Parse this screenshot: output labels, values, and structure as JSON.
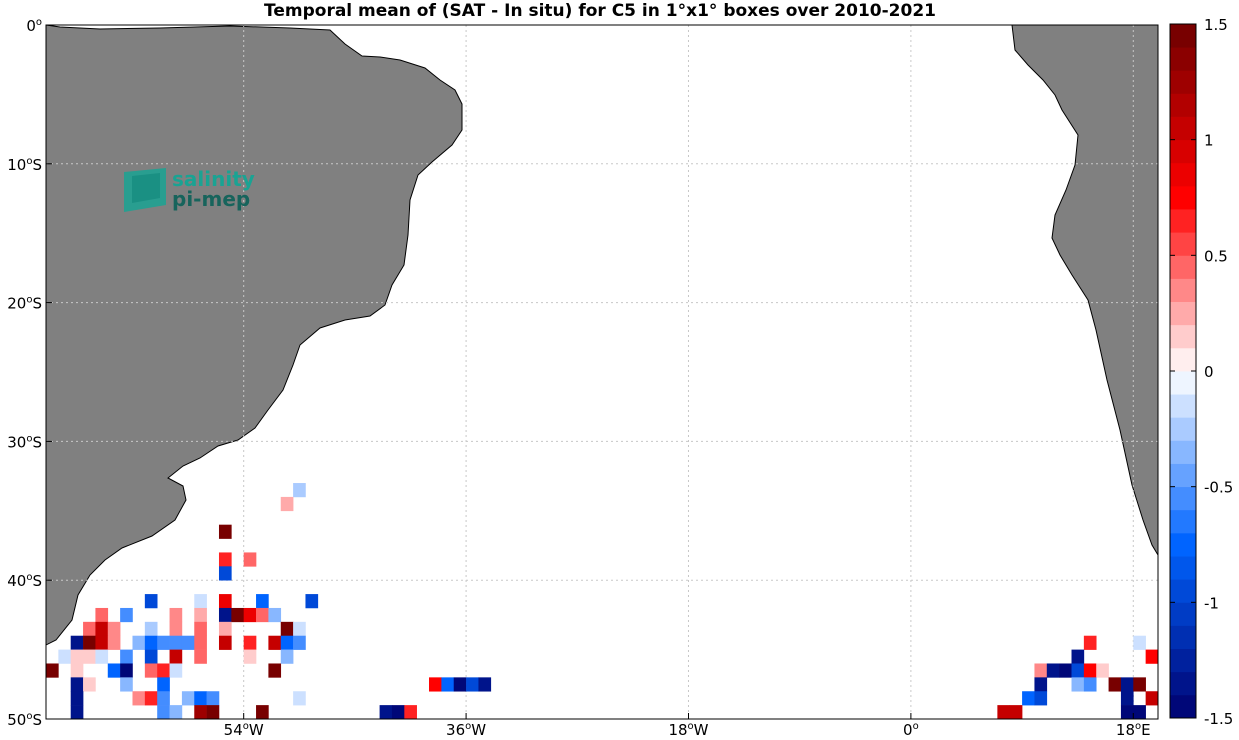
{
  "chart_data": {
    "type": "heatmap",
    "title": "Temporal mean of (SAT - In situ) for C5 in 1°x1° boxes over 2010-2021",
    "xlim": [
      -70,
      20
    ],
    "ylim": [
      -50,
      0
    ],
    "x_ticks": [
      {
        "value": -54,
        "label": "54",
        "sup": "o",
        "suffix": "W"
      },
      {
        "value": -36,
        "label": "36",
        "sup": "o",
        "suffix": "W"
      },
      {
        "value": -18,
        "label": "18",
        "sup": "o",
        "suffix": "W"
      },
      {
        "value": 0,
        "label": "0",
        "sup": "o",
        "suffix": ""
      },
      {
        "value": 18,
        "label": "18",
        "sup": "o",
        "suffix": "E"
      }
    ],
    "y_ticks": [
      {
        "value": 0,
        "label": "0",
        "sup": "o",
        "suffix": ""
      },
      {
        "value": -10,
        "label": "10",
        "sup": "o",
        "suffix": "S"
      },
      {
        "value": -20,
        "label": "20",
        "sup": "o",
        "suffix": "S"
      },
      {
        "value": -30,
        "label": "30",
        "sup": "o",
        "suffix": "S"
      },
      {
        "value": -40,
        "label": "40",
        "sup": "o",
        "suffix": "S"
      },
      {
        "value": -50,
        "label": "50",
        "sup": "o",
        "suffix": "S"
      }
    ],
    "grid": true,
    "colorbar": {
      "min": -1.5,
      "max": 1.5,
      "levels": 30,
      "placement": "right",
      "tick_values": [
        1.5,
        1,
        0.5,
        0,
        -0.5,
        -1,
        -1.5
      ],
      "tick_labels": [
        "1.5",
        "1",
        "0.5",
        "0",
        "-0.5",
        "-1",
        "-1.5"
      ]
    },
    "land_color": "#808080",
    "cells": [
      [
        -49.5,
        -33.5,
        -0.25
      ],
      [
        -50.5,
        -34.5,
        0.25
      ],
      [
        -55.5,
        -36.5,
        1.5
      ],
      [
        -55.5,
        -38.5,
        0.6
      ],
      [
        -53.5,
        -38.5,
        0.45
      ],
      [
        -55.5,
        -39.5,
        -0.9
      ],
      [
        -61.5,
        -41.5,
        -0.9
      ],
      [
        -57.5,
        -41.5,
        -0.15
      ],
      [
        -55.5,
        -41.5,
        0.8
      ],
      [
        -52.5,
        -41.5,
        -0.75
      ],
      [
        -48.5,
        -41.5,
        -0.9
      ],
      [
        -65.5,
        -42.5,
        0.45
      ],
      [
        -63.5,
        -42.5,
        -0.6
      ],
      [
        -59.5,
        -42.5,
        0.3
      ],
      [
        -57.5,
        -42.5,
        0.25
      ],
      [
        -55.5,
        -42.5,
        -1.3
      ],
      [
        -54.5,
        -42.5,
        1.5
      ],
      [
        -53.5,
        -42.5,
        0.9
      ],
      [
        -52.5,
        -42.5,
        0.45
      ],
      [
        -51.5,
        -42.5,
        -0.3
      ],
      [
        -66.5,
        -43.5,
        0.45
      ],
      [
        -65.5,
        -43.5,
        1.0
      ],
      [
        -64.5,
        -43.5,
        0.3
      ],
      [
        -61.5,
        -43.5,
        -0.25
      ],
      [
        -59.5,
        -43.5,
        0.3
      ],
      [
        -57.5,
        -43.5,
        0.45
      ],
      [
        -55.5,
        -43.5,
        0.25
      ],
      [
        -50.5,
        -43.5,
        1.5
      ],
      [
        -49.5,
        -43.5,
        -0.2
      ],
      [
        -67.5,
        -44.5,
        -1.4
      ],
      [
        -66.5,
        -44.5,
        1.5
      ],
      [
        -65.5,
        -44.5,
        1.0
      ],
      [
        -64.5,
        -44.5,
        0.3
      ],
      [
        -62.5,
        -44.5,
        -0.3
      ],
      [
        -61.5,
        -44.5,
        -0.75
      ],
      [
        -60.5,
        -44.5,
        -0.6
      ],
      [
        -59.5,
        -44.5,
        -0.6
      ],
      [
        -58.5,
        -44.5,
        -0.6
      ],
      [
        -57.5,
        -44.5,
        0.45
      ],
      [
        -55.5,
        -44.5,
        1.0
      ],
      [
        -53.5,
        -44.5,
        0.6
      ],
      [
        -51.5,
        -44.5,
        1.0
      ],
      [
        -50.5,
        -44.5,
        -0.75
      ],
      [
        -49.5,
        -44.5,
        -0.6
      ],
      [
        -68.5,
        -45.5,
        -0.15
      ],
      [
        -67.5,
        -45.5,
        0.15
      ],
      [
        -66.5,
        -45.5,
        0.15
      ],
      [
        -65.5,
        -45.5,
        -0.15
      ],
      [
        -63.5,
        -45.5,
        -0.6
      ],
      [
        -61.5,
        -45.5,
        -0.9
      ],
      [
        -59.5,
        -45.5,
        1.0
      ],
      [
        -57.5,
        -45.5,
        0.45
      ],
      [
        -53.5,
        -45.5,
        0.15
      ],
      [
        -50.5,
        -45.5,
        -0.3
      ],
      [
        -69.5,
        -46.5,
        1.5
      ],
      [
        -67.5,
        -46.5,
        0.15
      ],
      [
        -64.5,
        -46.5,
        -0.75
      ],
      [
        -63.5,
        -46.5,
        -1.5
      ],
      [
        -61.5,
        -46.5,
        0.45
      ],
      [
        -60.5,
        -46.5,
        0.6
      ],
      [
        -59.5,
        -46.5,
        -0.15
      ],
      [
        -51.5,
        -46.5,
        1.5
      ],
      [
        -67.5,
        -47.5,
        -1.4
      ],
      [
        -66.5,
        -47.5,
        0.15
      ],
      [
        -63.5,
        -47.5,
        -0.3
      ],
      [
        -60.5,
        -47.5,
        -0.75
      ],
      [
        -38.5,
        -47.5,
        0.75
      ],
      [
        -37.5,
        -47.5,
        -0.75
      ],
      [
        -36.5,
        -47.5,
        -1.5
      ],
      [
        -35.5,
        -47.5,
        -1.0
      ],
      [
        -34.5,
        -47.5,
        -1.3
      ],
      [
        -67.5,
        -48.5,
        -1.4
      ],
      [
        -62.5,
        -48.5,
        0.3
      ],
      [
        -61.5,
        -48.5,
        0.6
      ],
      [
        -60.5,
        -48.5,
        -0.6
      ],
      [
        -58.5,
        -48.5,
        -0.3
      ],
      [
        -57.5,
        -48.5,
        -0.75
      ],
      [
        -56.5,
        -48.5,
        -0.6
      ],
      [
        -49.5,
        -48.5,
        -0.2
      ],
      [
        -70.5,
        -49.5,
        1.5
      ],
      [
        -67.5,
        -49.5,
        -1.4
      ],
      [
        -60.5,
        -49.5,
        -0.6
      ],
      [
        -59.5,
        -49.5,
        -0.3
      ],
      [
        -57.5,
        -49.5,
        1.3
      ],
      [
        -56.5,
        -49.5,
        1.5
      ],
      [
        -52.5,
        -49.5,
        1.5
      ],
      [
        -42.5,
        -49.5,
        -1.3
      ],
      [
        -41.5,
        -49.5,
        -1.5
      ],
      [
        -40.5,
        -49.5,
        0.6
      ],
      [
        -68.5,
        -50.5,
        -1.5
      ],
      [
        -67.5,
        -50.5,
        1.0
      ],
      [
        -55.5,
        -50.5,
        -0.25
      ],
      [
        -50.5,
        -50.5,
        0.6
      ],
      [
        -49.5,
        -50.5,
        -1.5
      ],
      [
        -46.5,
        -50.5,
        -1.0
      ],
      [
        -12.5,
        -50.5,
        -1.5
      ],
      [
        -8.5,
        -50.5,
        -0.75
      ],
      [
        14.5,
        -44.5,
        0.6
      ],
      [
        18.5,
        -44.5,
        -0.15
      ],
      [
        13.5,
        -45.5,
        -1.3
      ],
      [
        19.5,
        -45.5,
        0.75
      ],
      [
        10.5,
        -46.5,
        0.3
      ],
      [
        11.5,
        -46.5,
        -1.3
      ],
      [
        12.5,
        -46.5,
        -1.5
      ],
      [
        13.5,
        -46.5,
        -1.0
      ],
      [
        14.5,
        -46.5,
        0.75
      ],
      [
        15.5,
        -46.5,
        0.15
      ],
      [
        10.5,
        -47.5,
        -1.3
      ],
      [
        13.5,
        -47.5,
        -0.3
      ],
      [
        14.5,
        -47.5,
        -0.6
      ],
      [
        16.5,
        -47.5,
        1.5
      ],
      [
        17.5,
        -47.5,
        -1.3
      ],
      [
        18.5,
        -47.5,
        1.5
      ],
      [
        9.5,
        -48.5,
        -0.75
      ],
      [
        10.5,
        -48.5,
        -0.9
      ],
      [
        17.5,
        -48.5,
        -1.4
      ],
      [
        19.5,
        -48.5,
        1.0
      ],
      [
        7.5,
        -49.5,
        1.0
      ],
      [
        8.5,
        -49.5,
        1.0
      ],
      [
        17.5,
        -49.5,
        -1.5
      ],
      [
        18.5,
        -49.5,
        -1.5
      ],
      [
        5.5,
        -50.5,
        1.5
      ],
      [
        6.5,
        -50.5,
        1.5
      ],
      [
        7.5,
        -50.5,
        1.5
      ],
      [
        8.5,
        -50.5,
        1.5
      ],
      [
        17.5,
        -50.5,
        -1.5
      ],
      [
        18.5,
        -50.5,
        0.25
      ],
      [
        19.5,
        -50.5,
        -1.5
      ]
    ]
  },
  "logo": {
    "line1": "salinity",
    "line2": "pi-mep"
  },
  "colors": {
    "logo_teal": "#1aa393",
    "logo_dark": "#17645c"
  }
}
